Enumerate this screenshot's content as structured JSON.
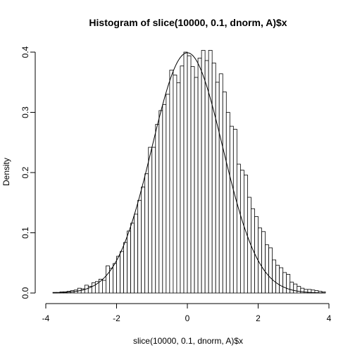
{
  "chart_data": {
    "type": "bar",
    "title": "Histogram of slice(10000, 0.1, dnorm, A)$x",
    "xlabel": "slice(10000, 0.1, dnorm, A)$x",
    "ylabel": "Density",
    "xlim": [
      -4,
      4
    ],
    "ylim": [
      0,
      0.4
    ],
    "x_ticks": [
      "-4",
      "-2",
      "0",
      "2",
      "4"
    ],
    "x_tick_values": [
      -4,
      -2,
      0,
      2,
      4
    ],
    "y_ticks": [
      "0.0",
      "0.1",
      "0.2",
      "0.3",
      "0.4"
    ],
    "y_tick_values": [
      0,
      0.1,
      0.2,
      0.3,
      0.4
    ],
    "bin_start": -3.8,
    "bin_width": 0.1,
    "values": [
      0.001,
      0.001,
      0.002,
      0.002,
      0.003,
      0.004,
      0.005,
      0.008,
      0.007,
      0.013,
      0.011,
      0.017,
      0.019,
      0.023,
      0.021,
      0.045,
      0.041,
      0.049,
      0.061,
      0.069,
      0.084,
      0.103,
      0.116,
      0.131,
      0.154,
      0.176,
      0.198,
      0.242,
      0.242,
      0.28,
      0.303,
      0.313,
      0.33,
      0.37,
      0.362,
      0.349,
      0.377,
      0.4,
      0.394,
      0.376,
      0.358,
      0.39,
      0.403,
      0.386,
      0.403,
      0.382,
      0.35,
      0.364,
      0.334,
      0.3,
      0.277,
      0.272,
      0.214,
      0.204,
      0.196,
      0.159,
      0.14,
      0.127,
      0.108,
      0.102,
      0.08,
      0.075,
      0.055,
      0.046,
      0.042,
      0.034,
      0.031,
      0.018,
      0.015,
      0.011,
      0.008,
      0.006,
      0.006,
      0.005,
      0.004,
      0.003,
      0.002
    ],
    "curve": "dnorm",
    "grid": false,
    "legend": "none"
  }
}
